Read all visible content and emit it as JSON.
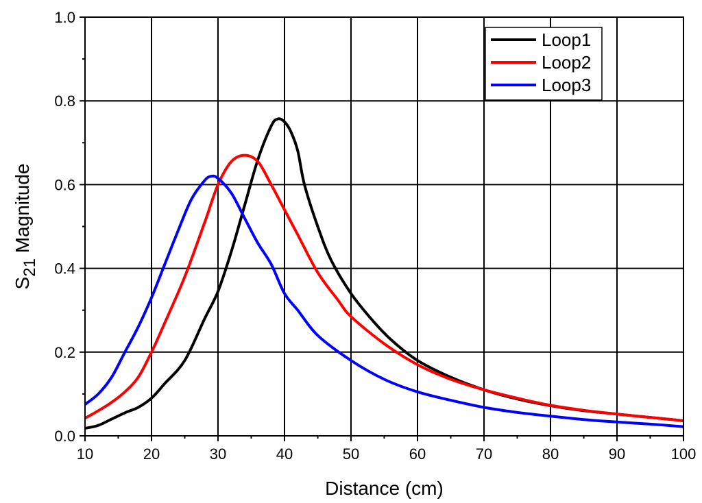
{
  "chart_data": {
    "type": "line",
    "title": "",
    "xlabel": "Distance (cm)",
    "ylabel": {
      "main": "S",
      "sub": "21",
      "rest": " Magnitude"
    },
    "xlim": [
      10,
      100
    ],
    "ylim": [
      0.0,
      1.0
    ],
    "xticks": [
      10,
      20,
      30,
      40,
      50,
      60,
      70,
      80,
      90,
      100
    ],
    "yticks": [
      "0.0",
      "0.2",
      "0.4",
      "0.6",
      "0.8",
      "1.0"
    ],
    "grid": true,
    "legend_position": "top-right",
    "series": [
      {
        "name": "Loop1",
        "color": "#000000",
        "x": [
          10,
          12,
          14,
          16,
          18,
          20,
          22,
          25,
          28,
          30,
          32,
          34,
          36,
          38,
          39,
          40,
          41,
          42,
          43,
          45,
          47,
          50,
          53,
          56,
          60,
          65,
          70,
          75,
          80,
          85,
          90,
          95,
          100
        ],
        "y": [
          0.018,
          0.025,
          0.04,
          0.055,
          0.068,
          0.09,
          0.125,
          0.18,
          0.28,
          0.345,
          0.44,
          0.55,
          0.66,
          0.74,
          0.757,
          0.75,
          0.725,
          0.68,
          0.6,
          0.5,
          0.42,
          0.34,
          0.28,
          0.23,
          0.18,
          0.14,
          0.11,
          0.088,
          0.072,
          0.06,
          0.052,
          0.044,
          0.036
        ]
      },
      {
        "name": "Loop2",
        "color": "#ff0000",
        "x": [
          10,
          12,
          14,
          16,
          18,
          20,
          22,
          25,
          28,
          30,
          32,
          34,
          36,
          38,
          40,
          42,
          45,
          48,
          50,
          55,
          60,
          65,
          70,
          75,
          80,
          85,
          90,
          95,
          100
        ],
        "y": [
          0.042,
          0.06,
          0.08,
          0.105,
          0.14,
          0.2,
          0.27,
          0.38,
          0.51,
          0.6,
          0.655,
          0.67,
          0.655,
          0.6,
          0.54,
          0.48,
          0.39,
          0.325,
          0.285,
          0.22,
          0.17,
          0.135,
          0.11,
          0.09,
          0.073,
          0.061,
          0.052,
          0.044,
          0.036
        ]
      },
      {
        "name": "Loop3",
        "color": "#0000ff",
        "x": [
          10,
          12,
          14,
          16,
          18,
          20,
          22,
          24,
          26,
          28,
          29,
          30,
          32,
          34,
          36,
          38,
          40,
          42,
          45,
          50,
          55,
          60,
          65,
          70,
          75,
          80,
          85,
          90,
          95,
          100
        ],
        "y": [
          0.075,
          0.1,
          0.14,
          0.2,
          0.26,
          0.33,
          0.41,
          0.49,
          0.565,
          0.61,
          0.62,
          0.615,
          0.58,
          0.52,
          0.46,
          0.41,
          0.34,
          0.3,
          0.24,
          0.18,
          0.135,
          0.105,
          0.085,
          0.068,
          0.056,
          0.047,
          0.039,
          0.033,
          0.028,
          0.022
        ]
      }
    ]
  }
}
